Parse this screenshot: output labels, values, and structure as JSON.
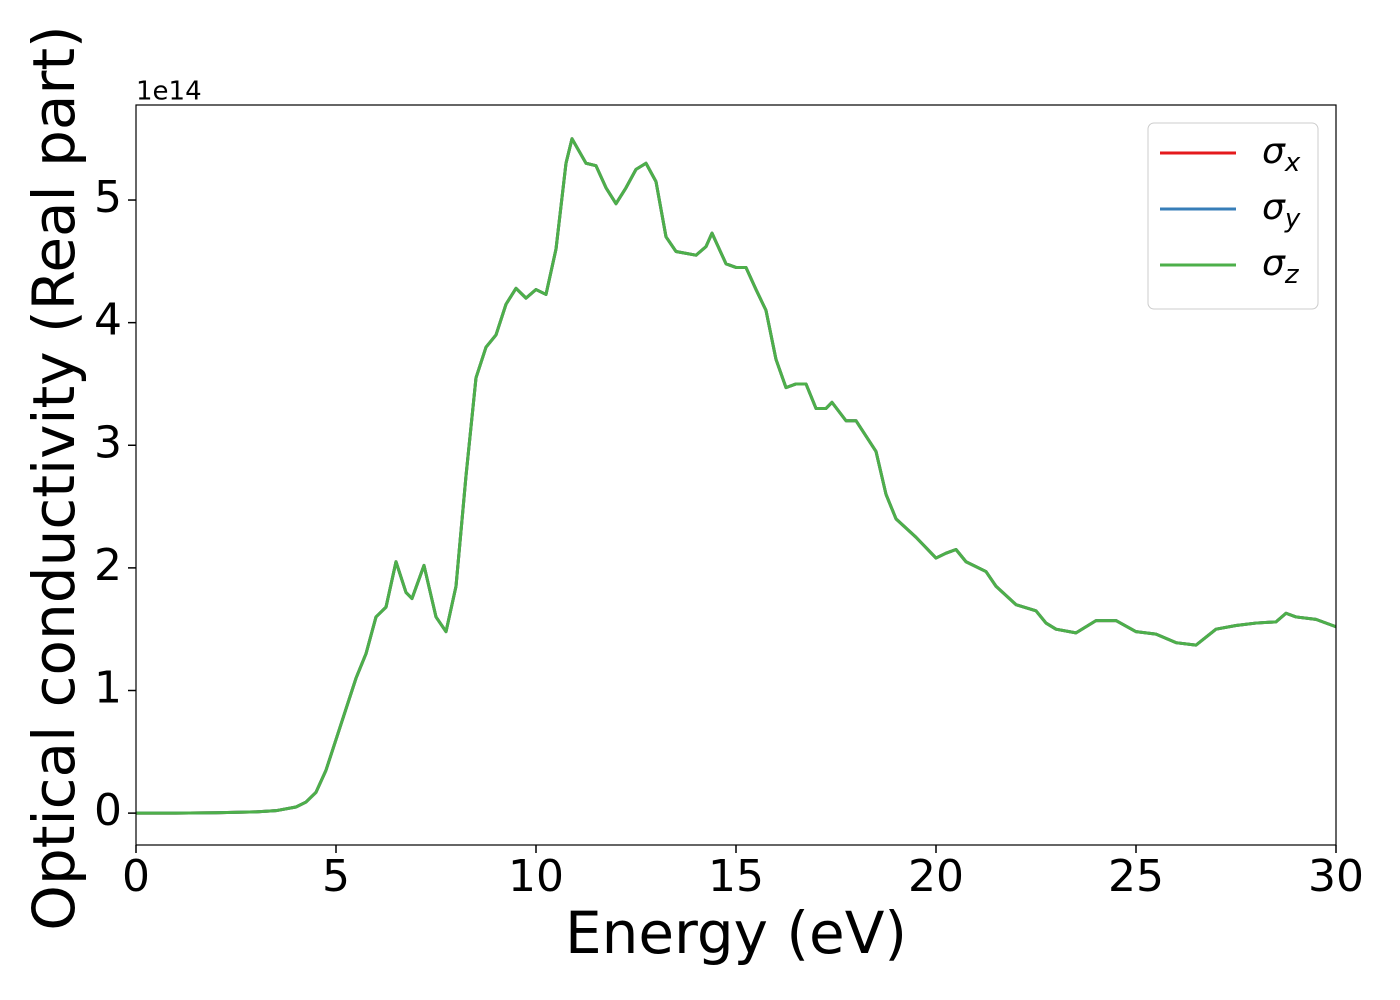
{
  "chart_data": {
    "type": "line",
    "xlabel": "Energy (eV)",
    "ylabel": "Optical conductivity (Real part)",
    "y_offset_label": "1e14",
    "x": [
      0,
      1,
      2,
      3,
      3.5,
      4,
      4.25,
      4.5,
      4.75,
      5,
      5.25,
      5.5,
      5.75,
      6,
      6.25,
      6.5,
      6.75,
      6.9,
      7.2,
      7.5,
      7.75,
      8,
      8.25,
      8.5,
      8.75,
      9,
      9.25,
      9.5,
      9.75,
      10,
      10.25,
      10.5,
      10.75,
      10.9,
      11.25,
      11.5,
      11.75,
      12,
      12.25,
      12.5,
      12.75,
      13,
      13.25,
      13.5,
      14,
      14.25,
      14.4,
      14.75,
      15,
      15.25,
      15.5,
      15.75,
      16,
      16.25,
      16.5,
      16.75,
      17,
      17.25,
      17.4,
      17.75,
      18,
      18.5,
      18.75,
      19,
      19.5,
      20,
      20.25,
      20.5,
      20.75,
      21.25,
      21.5,
      22,
      22.5,
      22.75,
      23,
      23.5,
      24,
      24.5,
      25,
      25.5,
      26,
      26.5,
      27,
      27.5,
      28,
      28.5,
      28.75,
      29,
      29.5,
      30
    ],
    "series": [
      {
        "name": "σx",
        "color": "#e41a1c",
        "values": [
          0,
          0,
          0.003,
          0.01,
          0.02,
          0.05,
          0.09,
          0.17,
          0.35,
          0.6,
          0.85,
          1.1,
          1.3,
          1.6,
          1.68,
          2.05,
          1.8,
          1.75,
          2.02,
          1.6,
          1.48,
          1.85,
          2.75,
          3.55,
          3.8,
          3.9,
          4.15,
          4.28,
          4.2,
          4.27,
          4.23,
          4.6,
          5.3,
          5.5,
          5.3,
          5.28,
          5.1,
          4.97,
          5.1,
          5.25,
          5.3,
          5.15,
          4.7,
          4.58,
          4.55,
          4.62,
          4.73,
          4.48,
          4.45,
          4.45,
          4.27,
          4.1,
          3.7,
          3.47,
          3.5,
          3.5,
          3.3,
          3.3,
          3.35,
          3.2,
          3.2,
          2.95,
          2.6,
          2.4,
          2.25,
          2.08,
          2.12,
          2.15,
          2.05,
          1.97,
          1.85,
          1.7,
          1.65,
          1.55,
          1.5,
          1.47,
          1.57,
          1.57,
          1.48,
          1.46,
          1.39,
          1.37,
          1.5,
          1.53,
          1.55,
          1.56,
          1.63,
          1.6,
          1.58,
          1.52
        ]
      },
      {
        "name": "σy",
        "color": "#377eb8",
        "values": [
          0,
          0,
          0.003,
          0.01,
          0.02,
          0.05,
          0.09,
          0.17,
          0.35,
          0.6,
          0.85,
          1.1,
          1.3,
          1.6,
          1.68,
          2.05,
          1.8,
          1.75,
          2.02,
          1.6,
          1.48,
          1.85,
          2.75,
          3.55,
          3.8,
          3.9,
          4.15,
          4.28,
          4.2,
          4.27,
          4.23,
          4.6,
          5.3,
          5.5,
          5.3,
          5.28,
          5.1,
          4.97,
          5.1,
          5.25,
          5.3,
          5.15,
          4.7,
          4.58,
          4.55,
          4.62,
          4.73,
          4.48,
          4.45,
          4.45,
          4.27,
          4.1,
          3.7,
          3.47,
          3.5,
          3.5,
          3.3,
          3.3,
          3.35,
          3.2,
          3.2,
          2.95,
          2.6,
          2.4,
          2.25,
          2.08,
          2.12,
          2.15,
          2.05,
          1.97,
          1.85,
          1.7,
          1.65,
          1.55,
          1.5,
          1.47,
          1.57,
          1.57,
          1.48,
          1.46,
          1.39,
          1.37,
          1.5,
          1.53,
          1.55,
          1.56,
          1.63,
          1.6,
          1.58,
          1.52
        ]
      },
      {
        "name": "σz",
        "color": "#4daf4a",
        "values": [
          0,
          0,
          0.003,
          0.01,
          0.02,
          0.05,
          0.09,
          0.17,
          0.35,
          0.6,
          0.85,
          1.1,
          1.3,
          1.6,
          1.68,
          2.05,
          1.8,
          1.75,
          2.02,
          1.6,
          1.48,
          1.85,
          2.75,
          3.55,
          3.8,
          3.9,
          4.15,
          4.28,
          4.2,
          4.27,
          4.23,
          4.6,
          5.3,
          5.5,
          5.3,
          5.28,
          5.1,
          4.97,
          5.1,
          5.25,
          5.3,
          5.15,
          4.7,
          4.58,
          4.55,
          4.62,
          4.73,
          4.48,
          4.45,
          4.45,
          4.27,
          4.1,
          3.7,
          3.47,
          3.5,
          3.5,
          3.3,
          3.3,
          3.35,
          3.2,
          3.2,
          2.95,
          2.6,
          2.4,
          2.25,
          2.08,
          2.12,
          2.15,
          2.05,
          1.97,
          1.85,
          1.7,
          1.65,
          1.55,
          1.5,
          1.47,
          1.57,
          1.57,
          1.48,
          1.46,
          1.39,
          1.37,
          1.5,
          1.53,
          1.55,
          1.56,
          1.63,
          1.6,
          1.58,
          1.52
        ]
      }
    ],
    "xlim": [
      0,
      30
    ],
    "xticks": [
      0,
      5,
      10,
      15,
      20,
      25,
      30
    ],
    "ylim": [
      -0.26,
      5.775
    ],
    "yticks": [
      0,
      1,
      2,
      3,
      4,
      5
    ],
    "grid": false,
    "legend": "upper right"
  }
}
